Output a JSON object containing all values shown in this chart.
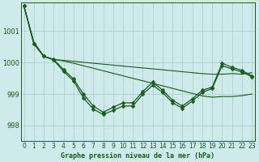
{
  "title": "Graphe pression niveau de la mer (hPa)",
  "background_color": "#ceeaea",
  "grid_color": "#b0d0d0",
  "line_color": "#1a5c1a",
  "x_ticks": [
    0,
    1,
    2,
    3,
    4,
    5,
    6,
    7,
    8,
    9,
    10,
    11,
    12,
    13,
    14,
    15,
    16,
    17,
    18,
    19,
    20,
    21,
    22,
    23
  ],
  "y_ticks": [
    998,
    999,
    1000,
    1001
  ],
  "ylim": [
    997.5,
    1001.9
  ],
  "xlim": [
    -0.3,
    23.3
  ],
  "serA": [
    1001.8,
    1000.65,
    1000.2,
    1000.1,
    1000.07,
    1000.04,
    1000.01,
    999.98,
    999.95,
    999.92,
    999.89,
    999.86,
    999.83,
    999.8,
    999.77,
    999.74,
    999.71,
    999.68,
    999.65,
    999.63,
    999.63,
    999.65,
    999.63,
    999.68
  ],
  "serB": [
    1001.8,
    1000.65,
    1000.2,
    1000.1,
    1000.05,
    999.98,
    999.9,
    999.82,
    999.74,
    999.66,
    999.58,
    999.5,
    999.42,
    999.34,
    999.26,
    999.18,
    999.1,
    999.02,
    998.94,
    998.9,
    998.92,
    998.92,
    998.95,
    999.0
  ],
  "serC": [
    1001.8,
    1000.6,
    1000.2,
    1000.1,
    999.78,
    999.48,
    999.0,
    998.62,
    998.42,
    998.58,
    998.72,
    998.72,
    999.08,
    999.38,
    999.12,
    998.8,
    998.62,
    998.85,
    999.12,
    999.22,
    999.98,
    999.85,
    999.75,
    999.58
  ],
  "serD": [
    1001.8,
    1000.6,
    1000.2,
    1000.08,
    999.72,
    999.42,
    998.88,
    998.52,
    998.35,
    998.48,
    998.62,
    998.62,
    999.0,
    999.28,
    999.05,
    998.72,
    998.55,
    998.78,
    999.05,
    999.18,
    999.9,
    999.8,
    999.7,
    999.55
  ],
  "marker_size": 2.5,
  "lw_thin": 0.8,
  "lw_thick": 0.9,
  "tick_fontsize": 5.5,
  "label_fontsize": 6.0
}
